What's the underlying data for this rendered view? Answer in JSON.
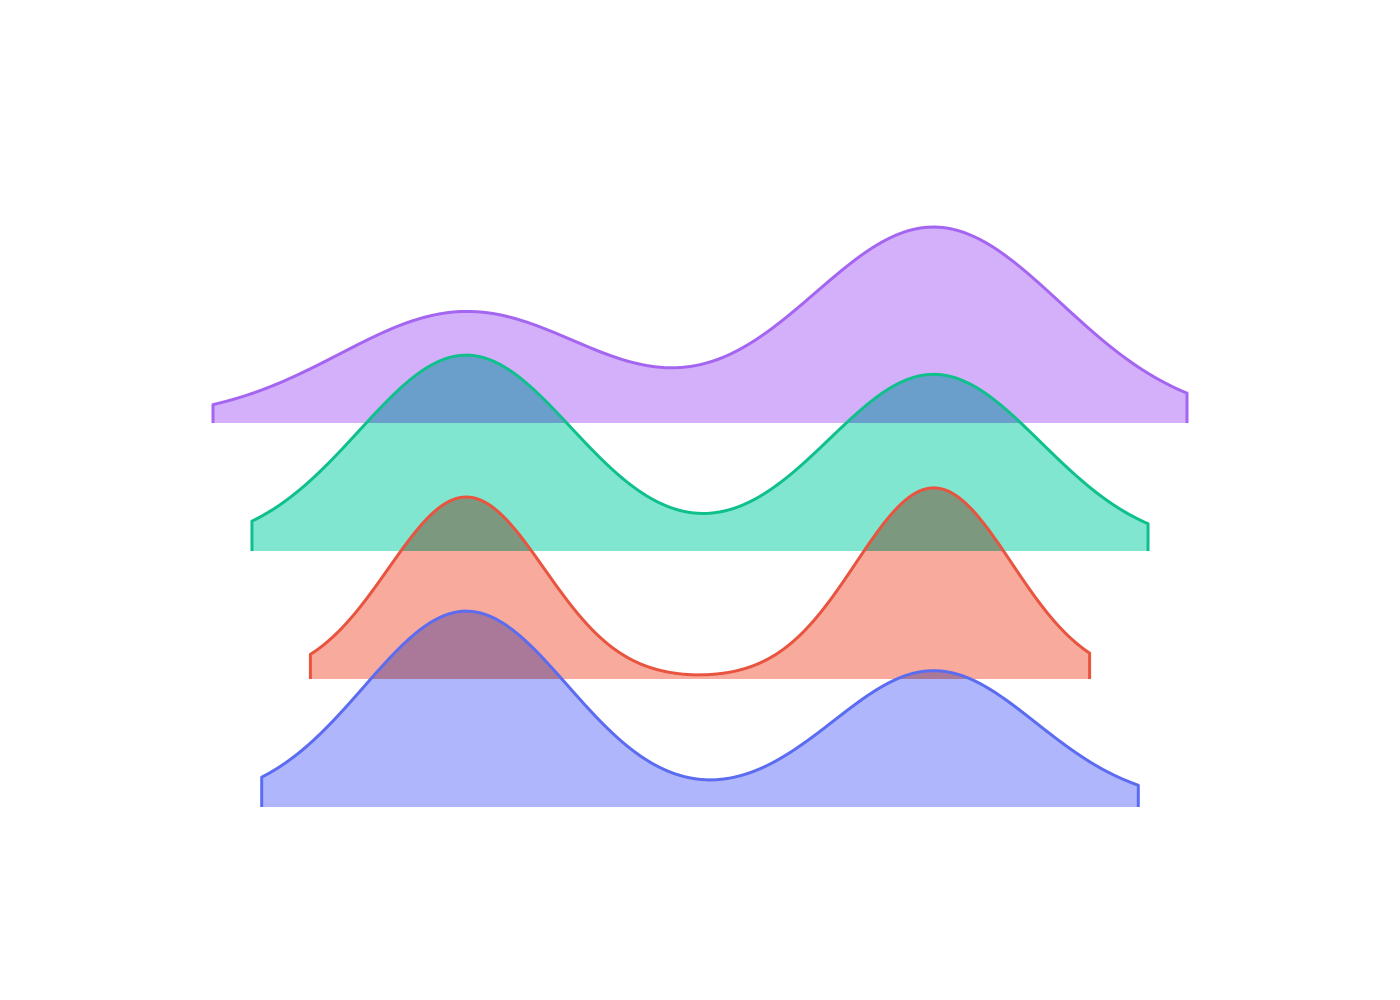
{
  "chart_data": {
    "type": "area",
    "title": "",
    "xlabel": "",
    "ylabel": "",
    "grid": false,
    "legend": "none",
    "x_range": [
      0,
      1
    ],
    "series": [
      {
        "key": "purple",
        "color": "#a466f0",
        "fill": "#d4b0fb",
        "x_extent": [
          0.0,
          1.0
        ],
        "peaks": [
          {
            "x": 0.26,
            "y": 0.56,
            "w": 0.13
          },
          {
            "x": 0.74,
            "y": 1.0,
            "w": 0.13
          }
        ],
        "base": 0.02
      },
      {
        "key": "green",
        "color": "#10c08c",
        "fill": "#80e6cf",
        "x_extent": [
          0.04,
          0.96
        ],
        "peaks": [
          {
            "x": 0.26,
            "y": 1.0,
            "w": 0.11
          },
          {
            "x": 0.74,
            "y": 0.9,
            "w": 0.11
          }
        ],
        "base": 0.02
      },
      {
        "key": "red",
        "color": "#e8543f",
        "fill": "#f8aa9c",
        "x_extent": [
          0.1,
          0.9
        ],
        "peaks": [
          {
            "x": 0.26,
            "y": 1.0,
            "w": 0.08
          },
          {
            "x": 0.74,
            "y": 1.05,
            "w": 0.08
          }
        ],
        "base": 0.0
      },
      {
        "key": "blue",
        "color": "#5c6cf0",
        "fill": "#afb6fb",
        "x_extent": [
          0.05,
          0.95
        ],
        "peaks": [
          {
            "x": 0.26,
            "y": 1.0,
            "w": 0.105
          },
          {
            "x": 0.74,
            "y": 0.69,
            "w": 0.105
          }
        ],
        "base": 0.02
      }
    ]
  }
}
